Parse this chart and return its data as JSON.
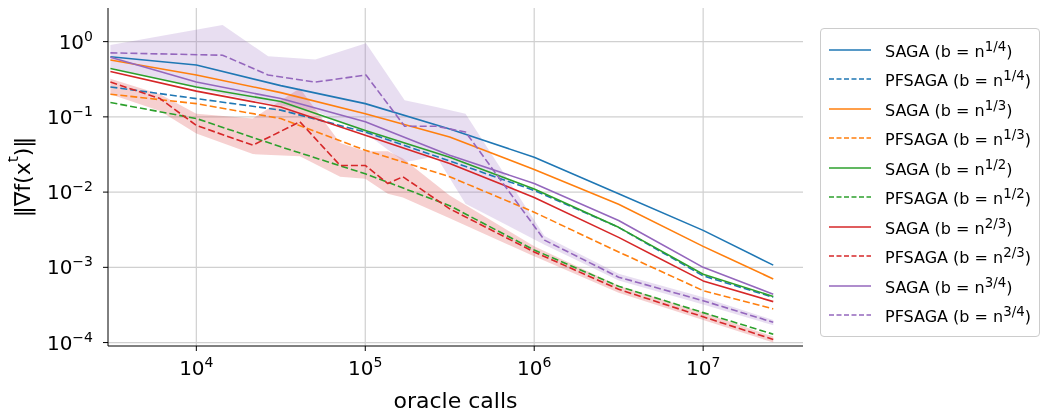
{
  "chart_data": {
    "type": "line",
    "xlabel": "oracle calls",
    "ylabel": "‖∇f(x$^{t}$)‖",
    "log": "xy",
    "grid": true,
    "legend": "right",
    "xlim": [
      3000,
      39000000
    ],
    "ylim": [
      9e-05,
      2.8
    ],
    "xticks": [
      {
        "value": 10000,
        "label": "10$^{4}$"
      },
      {
        "value": 100000,
        "label": "10$^{5}$"
      },
      {
        "value": 1000000,
        "label": "10$^{6}$"
      },
      {
        "value": 10000000,
        "label": "10$^{7}$"
      }
    ],
    "yticks": [
      {
        "value": 0.0001,
        "label": "10$^{−4}$"
      },
      {
        "value": 0.001,
        "label": "10$^{−3}$"
      },
      {
        "value": 0.01,
        "label": "10$^{−2}$"
      },
      {
        "value": 0.1,
        "label": "10$^{−1}$"
      },
      {
        "value": 1,
        "label": "10$^{0}$"
      }
    ],
    "series": [
      {
        "name": "SAGA (b = n$^{1/4}$)",
        "color": "#1f77b4",
        "line_style": "solid",
        "x": [
          3100,
          10000,
          31600,
          100000,
          316000,
          1000000,
          3160000,
          10000000,
          26000000
        ],
        "values": [
          0.63,
          0.49,
          0.26,
          0.15,
          0.069,
          0.029,
          0.0095,
          0.0031,
          0.00107
        ]
      },
      {
        "name": "PFSAGA (b = n$^{1/4}$)",
        "color": "#1f77b4",
        "line_style": "dashed",
        "x": [
          3100,
          10000,
          31600,
          100000,
          316000,
          1000000,
          3160000,
          10000000,
          26000000
        ],
        "values": [
          0.25,
          0.175,
          0.123,
          0.063,
          0.026,
          0.0105,
          0.0034,
          0.00077,
          0.0004
        ]
      },
      {
        "name": "SAGA (b = n$^{1/3}$)",
        "color": "#ff7f0e",
        "line_style": "solid",
        "x": [
          3100,
          10000,
          31600,
          100000,
          316000,
          1000000,
          3160000,
          10000000,
          26000000
        ],
        "values": [
          0.57,
          0.36,
          0.21,
          0.11,
          0.054,
          0.02,
          0.0069,
          0.0019,
          0.0007
        ]
      },
      {
        "name": "PFSAGA (b = n$^{1/3}$)",
        "color": "#ff7f0e",
        "line_style": "dashed",
        "x": [
          3100,
          10000,
          31600,
          100000,
          316000,
          1000000,
          3160000,
          10000000,
          26000000
        ],
        "values": [
          0.2,
          0.15,
          0.095,
          0.036,
          0.016,
          0.0054,
          0.0016,
          0.00049,
          0.00028
        ]
      },
      {
        "name": "SAGA (b = n$^{1/2}$)",
        "color": "#2ca02c",
        "line_style": "solid",
        "x": [
          3100,
          10000,
          31600,
          100000,
          316000,
          1000000,
          3160000,
          10000000,
          26000000
        ],
        "values": [
          0.44,
          0.25,
          0.16,
          0.066,
          0.029,
          0.011,
          0.0034,
          0.00081,
          0.00041
        ]
      },
      {
        "name": "PFSAGA (b = n$^{1/2}$)",
        "color": "#2ca02c",
        "line_style": "dashed",
        "x": [
          3100,
          10000,
          31600,
          100000,
          316000,
          1000000,
          3160000,
          10000000,
          26000000
        ],
        "values": [
          0.155,
          0.095,
          0.04,
          0.0175,
          0.0066,
          0.0017,
          0.00056,
          0.00025,
          0.000129
        ]
      },
      {
        "name": "SAGA (b = n$^{2/3}$)",
        "color": "#d62728",
        "line_style": "solid",
        "x": [
          3100,
          10000,
          31600,
          100000,
          316000,
          1000000,
          3160000,
          10000000,
          26000000
        ],
        "values": [
          0.4,
          0.22,
          0.135,
          0.057,
          0.024,
          0.0085,
          0.0025,
          0.00066,
          0.00035
        ]
      },
      {
        "name": "PFSAGA (b = n$^{2/3}$)",
        "color": "#d62728",
        "line_style": "dashed",
        "x": [
          3100,
          6100,
          10000,
          21600,
          41000,
          71000,
          100000,
          136000,
          167000,
          316000,
          1000000,
          3160000,
          10000000,
          26000000
        ],
        "values": [
          0.29,
          0.175,
          0.077,
          0.042,
          0.086,
          0.0226,
          0.0226,
          0.013,
          0.016,
          0.006,
          0.0016,
          0.00051,
          0.00022,
          0.00011
        ],
        "lower": [
          0.2,
          0.12,
          0.06,
          0.032,
          0.03,
          0.016,
          0.015,
          0.0095,
          0.0085,
          0.0045,
          0.0014,
          0.00046,
          0.0002,
          0.0001
        ],
        "upper": [
          0.32,
          0.2,
          0.11,
          0.095,
          0.24,
          0.045,
          0.035,
          0.035,
          0.028,
          0.009,
          0.0019,
          0.00057,
          0.00025,
          0.00012
        ]
      },
      {
        "name": "SAGA (b = n$^{3/4}$)",
        "color": "#9467bd",
        "line_style": "solid",
        "x": [
          3100,
          10000,
          31600,
          100000,
          316000,
          1000000,
          3160000,
          10000000,
          26000000
        ],
        "values": [
          0.62,
          0.29,
          0.175,
          0.086,
          0.031,
          0.013,
          0.0042,
          0.001,
          0.00044
        ]
      },
      {
        "name": "PFSAGA (b = n$^{3/4}$)",
        "color": "#9467bd",
        "line_style": "dashed",
        "x": [
          3100,
          14300,
          26600,
          50600,
          101000,
          171000,
          263000,
          392000,
          1150000,
          3160000,
          10000000,
          26000000
        ],
        "values": [
          0.71,
          0.66,
          0.36,
          0.29,
          0.36,
          0.075,
          0.075,
          0.063,
          0.0023,
          0.00074,
          0.00036,
          0.000186
        ],
        "lower": [
          0.45,
          0.2,
          0.15,
          0.12,
          0.06,
          0.025,
          0.03,
          0.007,
          0.002,
          0.00067,
          0.00032,
          0.00017
        ],
        "upper": [
          0.9,
          1.66,
          0.64,
          0.58,
          0.95,
          0.166,
          0.135,
          0.11,
          0.0026,
          0.00082,
          0.0004,
          0.0002
        ]
      }
    ]
  }
}
